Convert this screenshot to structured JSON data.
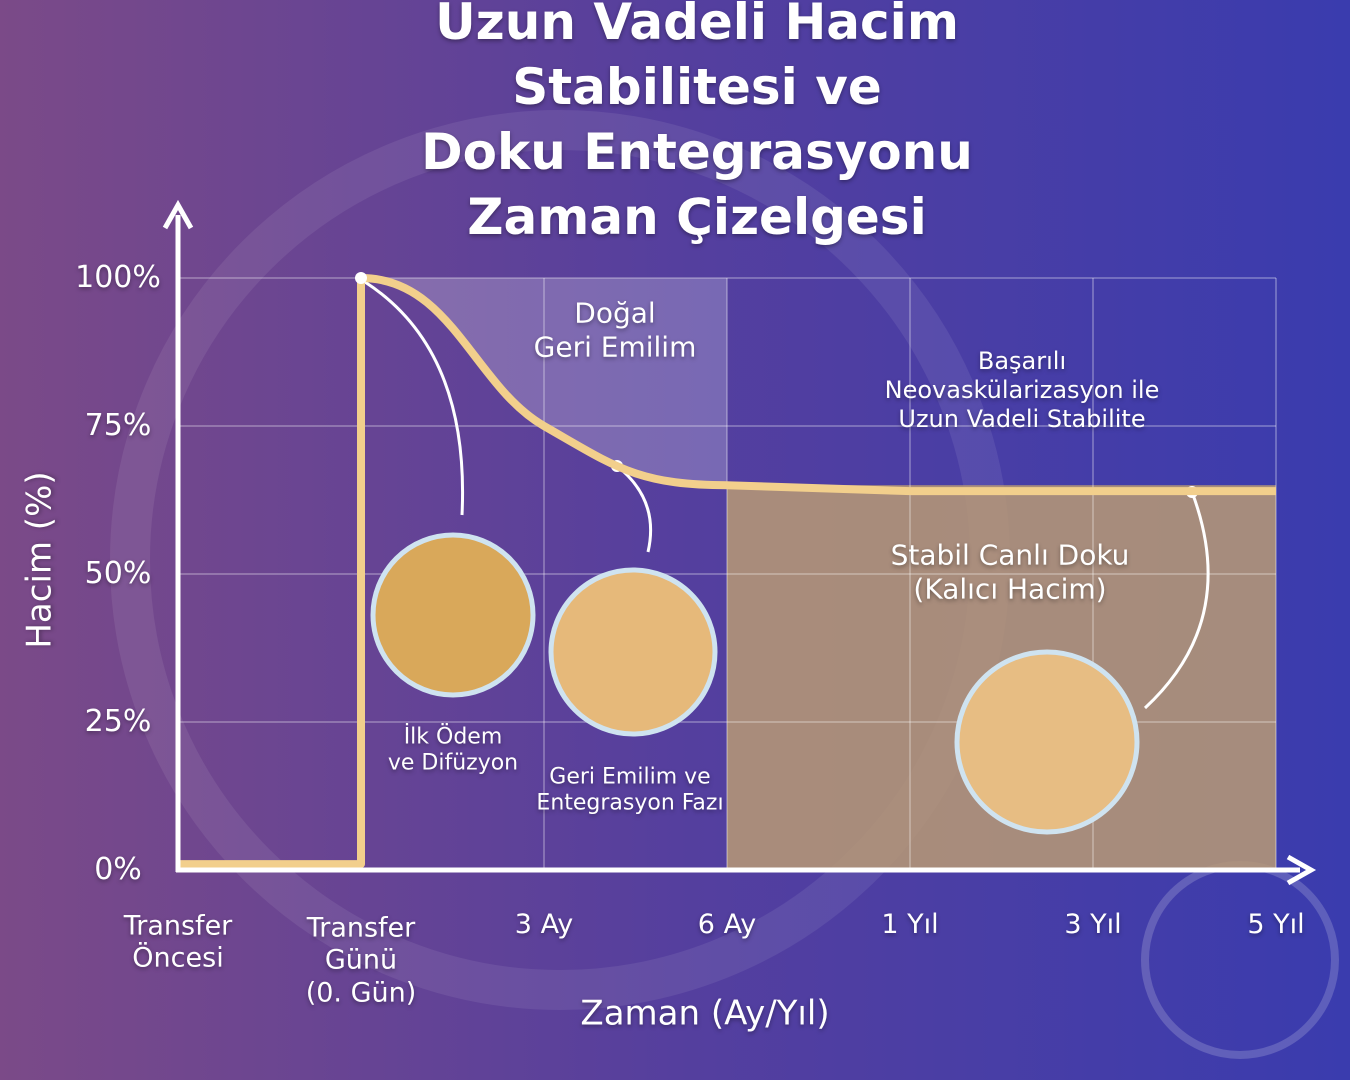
{
  "chart_data": {
    "type": "line",
    "title": "Uzun Vadeli Hacim Stabilitesi ve\nDoku Entegrasyonu Zaman Çizelgesi",
    "y_label": "Hacim (%)",
    "x_label": "Zaman (Ay/Yıl)",
    "categories": [
      "Transfer\nÖncesi",
      "Transfer\nGünü\n(0. Gün)",
      "3 Ay",
      "6 Ay",
      "1 Yıl",
      "3 Yıl",
      "5 Yıl"
    ],
    "values": [
      1,
      100,
      75,
      65,
      64,
      64,
      64
    ],
    "color": "#f2cf8c",
    "ylim": [
      0,
      100
    ],
    "yticks": [
      {
        "value": 0,
        "label": "0%"
      },
      {
        "value": 25,
        "label": "25%"
      },
      {
        "value": 50,
        "label": "50%"
      },
      {
        "value": 75,
        "label": "75%"
      },
      {
        "value": 100,
        "label": "100%"
      }
    ],
    "grid": true,
    "annotations": [
      "Doğal\nGeri Emilim",
      "Başarılı Neovaskülarizasyon ile\nUzun Vadeli Stabilite",
      "Stabil Canlı Doku\n(Kalıcı Hacim)",
      "İlk Ödem\nve Difüzyon",
      "Geri Emilim ve\nEntegrasyon Fazı"
    ]
  }
}
